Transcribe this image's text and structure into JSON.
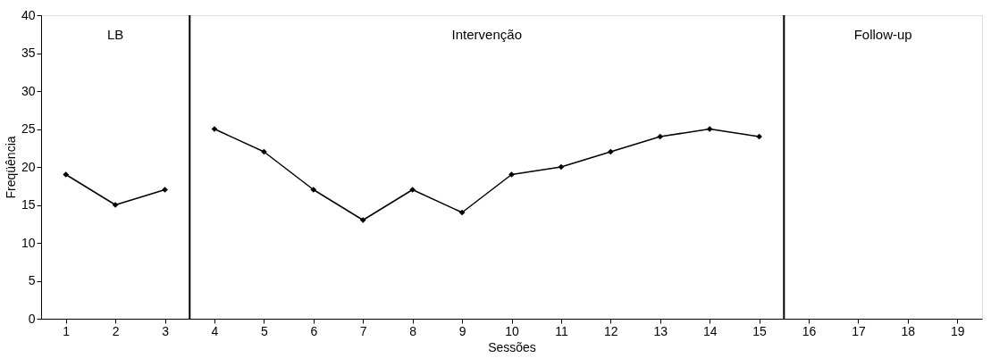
{
  "chart_data": {
    "type": "line",
    "xlabel": "Sessões",
    "ylabel": "Freqüência",
    "xlim": [
      0.5,
      19.5
    ],
    "xticks": [
      1,
      2,
      3,
      4,
      5,
      6,
      7,
      8,
      9,
      10,
      11,
      12,
      13,
      14,
      15,
      16,
      17,
      18,
      19
    ],
    "ylim": [
      0,
      40
    ],
    "yticks": [
      0,
      5,
      10,
      15,
      20,
      25,
      30,
      35,
      40
    ],
    "series": [
      {
        "color": "#000000",
        "x": [
          1,
          2,
          3
        ],
        "values": [
          19,
          15,
          17
        ]
      },
      {
        "color": "#000000",
        "x": [
          4,
          5,
          6,
          7,
          8,
          9,
          10,
          11,
          12,
          13,
          14,
          15
        ],
        "values": [
          25,
          22,
          17,
          13,
          17,
          14,
          19,
          20,
          22,
          24,
          25,
          24
        ]
      }
    ],
    "ref_lines": [
      {
        "axis": "x",
        "value": 3.5,
        "color": "#000000"
      },
      {
        "axis": "x",
        "value": 15.5,
        "color": "#000000"
      }
    ],
    "annotations": [
      "LB",
      "Intervenção",
      "Follow-up"
    ],
    "grid": false,
    "marker": "diamond",
    "line_style": "solid"
  }
}
